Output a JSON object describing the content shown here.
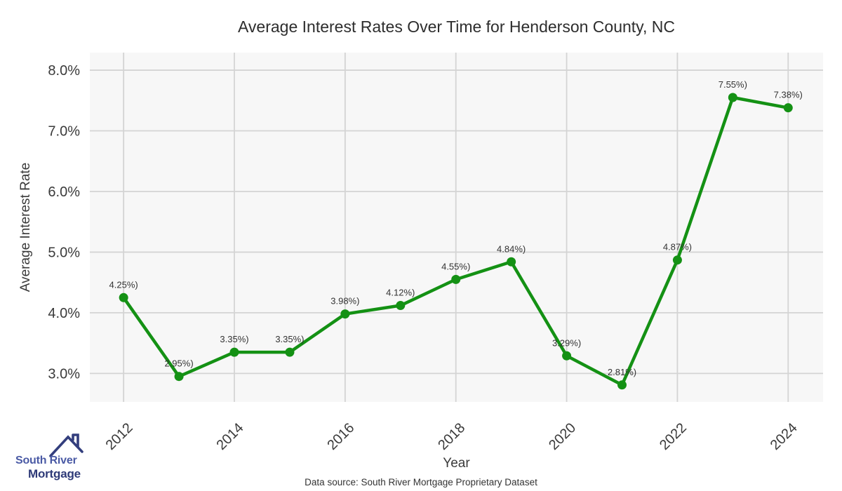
{
  "chart_data": {
    "type": "line",
    "title": "Average Interest Rates Over Time for Henderson County, NC",
    "xlabel": "Year",
    "ylabel": "Average Interest Rate",
    "x": [
      2012,
      2013,
      2014,
      2015,
      2016,
      2017,
      2018,
      2019,
      2020,
      2021,
      2022,
      2023,
      2024
    ],
    "values": [
      4.25,
      2.95,
      3.35,
      3.35,
      3.98,
      4.12,
      4.55,
      4.84,
      3.29,
      2.81,
      4.87,
      7.55,
      7.38
    ],
    "point_labels": [
      "4.25%)",
      "2.95%)",
      "3.35%)",
      "3.35%)",
      "3.98%)",
      "4.12%)",
      "4.55%)",
      "4.84%)",
      "3.29%)",
      "2.81%)",
      "4.87%)",
      "7.55%)",
      "7.38%)"
    ],
    "x_tick_values": [
      2012,
      2014,
      2016,
      2018,
      2020,
      2022,
      2024
    ],
    "x_tick_labels": [
      "2012",
      "2014",
      "2016",
      "2018",
      "2020",
      "2022",
      "2024"
    ],
    "y_tick_values": [
      8,
      7,
      6,
      5,
      4,
      3
    ],
    "y_tick_labels": [
      "8.0%",
      "7.0%",
      "6.0%",
      "5.0%",
      "4.0%",
      "3.0%"
    ],
    "xlim": [
      2011.39,
      2024.63
    ],
    "ylim": [
      2.53,
      8.29
    ],
    "grid": true,
    "legend": null,
    "line_color": "#149114",
    "marker_color": "#149114",
    "plot_bg_color": "#f7f7f7",
    "grid_color": "#d4d4d4",
    "tick_text_color": "#3a3a3a",
    "label_text_color": "#333333"
  },
  "footer": {
    "source_label": "Data source: South River Mortgage Proprietary Dataset"
  },
  "logo": {
    "line1": "South River",
    "line2": "Mortgage",
    "icon": "house-roof-icon",
    "line1_color": "#4a5aa5",
    "line2_color": "#2e3a78",
    "icon_color": "#333e7d"
  }
}
